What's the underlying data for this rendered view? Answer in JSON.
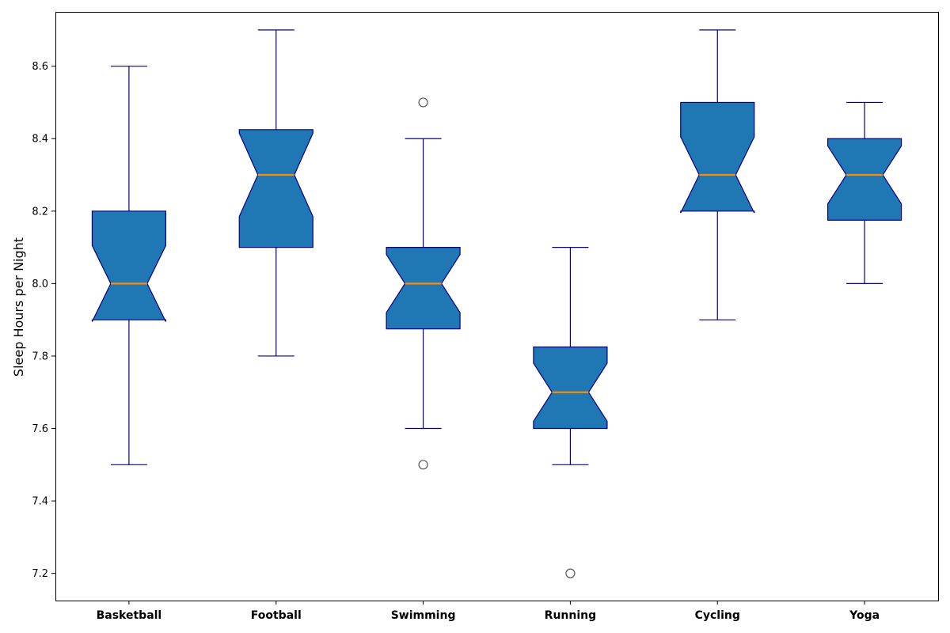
{
  "chart_data": {
    "type": "boxplot",
    "notched": true,
    "title": "",
    "xlabel": "",
    "ylabel": "Sleep Hours per Night",
    "ylim": [
      7.125,
      8.75
    ],
    "yticks": [
      7.2,
      7.4,
      7.6,
      7.8,
      8.0,
      8.2,
      8.4,
      8.6
    ],
    "categories": [
      "Basketball",
      "Football",
      "Swimming",
      "Running",
      "Cycling",
      "Yoga"
    ],
    "boxes": [
      {
        "category": "Basketball",
        "whisker_low": 7.5,
        "q1": 7.9,
        "median": 8.0,
        "q3": 8.2,
        "whisker_high": 8.6,
        "notch_low": 7.895,
        "notch_high": 8.105,
        "outliers": []
      },
      {
        "category": "Football",
        "whisker_low": 7.8,
        "q1": 8.1,
        "median": 8.3,
        "q3": 8.425,
        "whisker_high": 8.7,
        "notch_low": 8.185,
        "notch_high": 8.415,
        "outliers": []
      },
      {
        "category": "Swimming",
        "whisker_low": 7.6,
        "q1": 7.875,
        "median": 8.0,
        "q3": 8.1,
        "whisker_high": 8.4,
        "notch_low": 7.92,
        "notch_high": 8.08,
        "outliers": [
          8.5,
          7.5
        ]
      },
      {
        "category": "Running",
        "whisker_low": 7.5,
        "q1": 7.6,
        "median": 7.7,
        "q3": 7.825,
        "whisker_high": 8.1,
        "notch_low": 7.62,
        "notch_high": 7.78,
        "outliers": [
          7.2
        ]
      },
      {
        "category": "Cycling",
        "whisker_low": 7.9,
        "q1": 8.2,
        "median": 8.3,
        "q3": 8.5,
        "whisker_high": 8.7,
        "notch_low": 8.195,
        "notch_high": 8.405,
        "outliers": []
      },
      {
        "category": "Yoga",
        "whisker_low": 8.0,
        "q1": 8.175,
        "median": 8.3,
        "q3": 8.4,
        "whisker_high": 8.5,
        "notch_low": 8.22,
        "notch_high": 8.38,
        "outliers": []
      }
    ],
    "colors": {
      "box_fill": "#1f77b4",
      "box_edge": "#00008b",
      "median": "#ff8c00",
      "outlier_edge": "#555555"
    },
    "grid": false,
    "legend": "none"
  }
}
